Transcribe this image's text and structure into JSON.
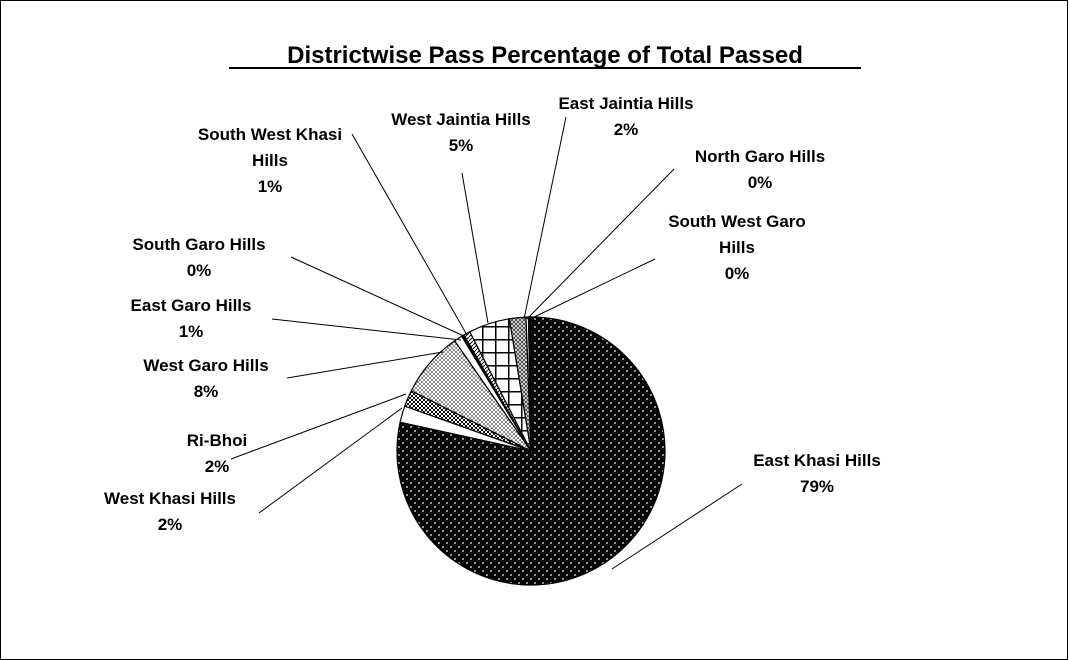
{
  "chart_data": {
    "type": "pie",
    "title": "Districtwise Pass Percentage of Total Passed",
    "start_angle_deg": 0,
    "direction": "clockwise",
    "slices": [
      {
        "name": "East Khasi Hills",
        "value": 79,
        "label": [
          "East Khasi Hills",
          "79%"
        ],
        "pattern": "dense-dots"
      },
      {
        "name": "West Khasi Hills",
        "value": 2,
        "label": [
          "West Khasi Hills",
          "2%"
        ],
        "pattern": "white"
      },
      {
        "name": "Ri-Bhoi",
        "value": 2,
        "label": [
          "Ri-Bhoi",
          "2%"
        ],
        "pattern": "checker-dark"
      },
      {
        "name": "West Garo Hills",
        "value": 8,
        "label": [
          "West Garo Hills",
          "8%"
        ],
        "pattern": "light-dots"
      },
      {
        "name": "East Garo Hills",
        "value": 1,
        "label": [
          "East Garo Hills",
          "1%"
        ],
        "pattern": "white"
      },
      {
        "name": "South Garo Hills",
        "value": 0.3,
        "label": [
          "South Garo Hills",
          "0%"
        ],
        "pattern": "black"
      },
      {
        "name": "South West Khasi Hills",
        "value": 0.8,
        "label": [
          "South West Khasi",
          "Hills",
          "1%"
        ],
        "pattern": "hatch"
      },
      {
        "name": "West Jaintia Hills",
        "value": 5,
        "label": [
          "West Jaintia Hills",
          "5%"
        ],
        "pattern": "grid"
      },
      {
        "name": "East Jaintia Hills",
        "value": 2,
        "label": [
          "East Jaintia Hills",
          "2%"
        ],
        "pattern": "checker-gray"
      },
      {
        "name": "North Garo Hills",
        "value": 0.3,
        "label": [
          "North Garo Hills",
          "0%"
        ],
        "pattern": "white"
      },
      {
        "name": "South West Garo Hills",
        "value": 0.3,
        "label": [
          "South West Garo",
          "Hills",
          "0%"
        ],
        "pattern": "black"
      }
    ]
  }
}
